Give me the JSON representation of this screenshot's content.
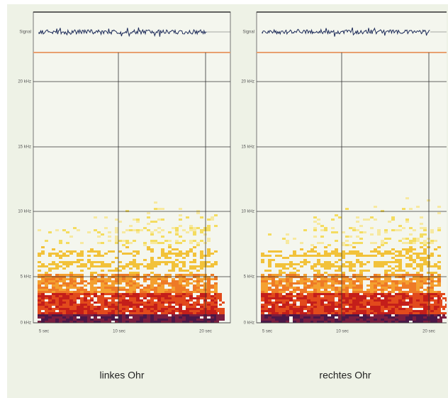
{
  "panels": [
    {
      "signal_label": "Signal",
      "y_labels": [
        "20 kHz",
        "15 kHz",
        "10 kHz",
        "5 kHz",
        "0 kHz"
      ],
      "x_labels": [
        "5 sec",
        "10 sec",
        "20 sec"
      ],
      "caption": "linkes Ohr"
    },
    {
      "signal_label": "Signal",
      "y_labels": [
        "20 kHz",
        "15 kHz",
        "10 kHz",
        "5 kHz",
        "0 kHz"
      ],
      "x_labels": [
        "5 sec",
        "10 sec",
        "20 sec"
      ],
      "caption": "rechtes Ohr"
    }
  ]
}
